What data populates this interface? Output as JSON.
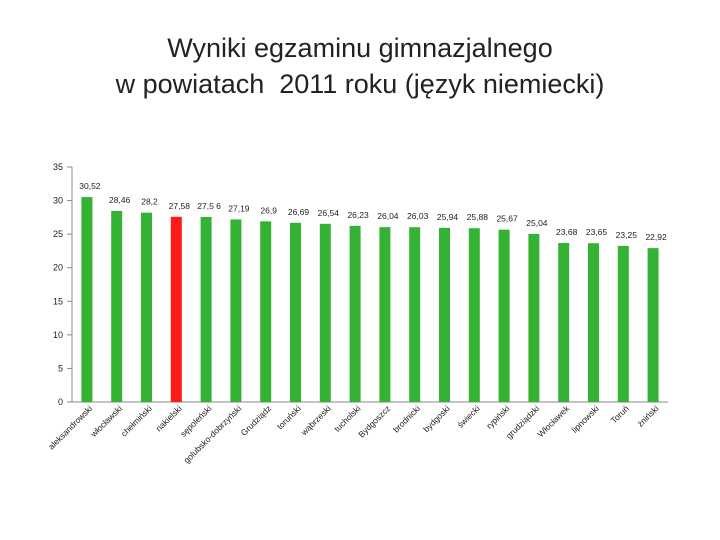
{
  "title_lines": [
    "Wyniki egzaminu gimnazjalnego",
    "w powiatach  2011 roku (język niemiecki)"
  ],
  "chart_data": {
    "type": "bar",
    "title": "Wyniki egzaminu gimnazjalnego w powiatach  2011 roku (język niemiecki)",
    "categories": [
      "aleksandrowski",
      "włocławski",
      "chełmiński",
      "nakielski",
      "sępoleński",
      "golubsko-dobrzyński",
      "Grudziądz",
      "toruński",
      "wąbrzeski",
      "tucholski",
      "Bydgoszcz",
      "brodnicki",
      "bydgoski",
      "świecki",
      "rypiński",
      "grudziądzki",
      "Włocławek",
      "lipnowski",
      "Toruń",
      "żniński"
    ],
    "tick_labels": [
      "aleksandrowski",
      "włocławski",
      "chełmiński",
      "nakielski",
      "sępoleński",
      "golubsko-dobrzyński",
      "Grudziądz",
      "toruński",
      "wąbrzeski",
      "tucholski",
      "Bydgoszcz",
      "brodnicki",
      "bydgoski",
      "świecki",
      "rypiński",
      "grudziądzki",
      "Włocławek",
      "lipnowski",
      "Toruń",
      "żniński"
    ],
    "values": [
      30.52,
      28.46,
      28.2,
      27.58,
      27.56,
      27.19,
      26.9,
      26.69,
      26.54,
      26.23,
      26.04,
      26.03,
      25.94,
      25.88,
      25.67,
      25.04,
      23.68,
      23.65,
      23.25,
      22.92
    ],
    "value_labels": [
      "30,52",
      "28,46",
      "28,2",
      "27,58",
      "27,5 6",
      "27,19",
      "26,9",
      "26,69",
      "26,54",
      "26,23",
      "26,04",
      "26,03",
      "25,94",
      "25,88",
      "25,67",
      "25,04",
      "23,68",
      "23,65",
      "23,25",
      "22,92"
    ],
    "y_ticks": [
      "0",
      "5",
      "10",
      "15",
      "20",
      "25",
      "30",
      "35"
    ],
    "ylim": [
      0,
      35
    ],
    "grid": false,
    "colors": {
      "bar": "#33b233",
      "highlight": "#ff1a1a",
      "highlight_category": "nakielski",
      "axis": "#8a8a8a",
      "text": "#222222"
    }
  }
}
